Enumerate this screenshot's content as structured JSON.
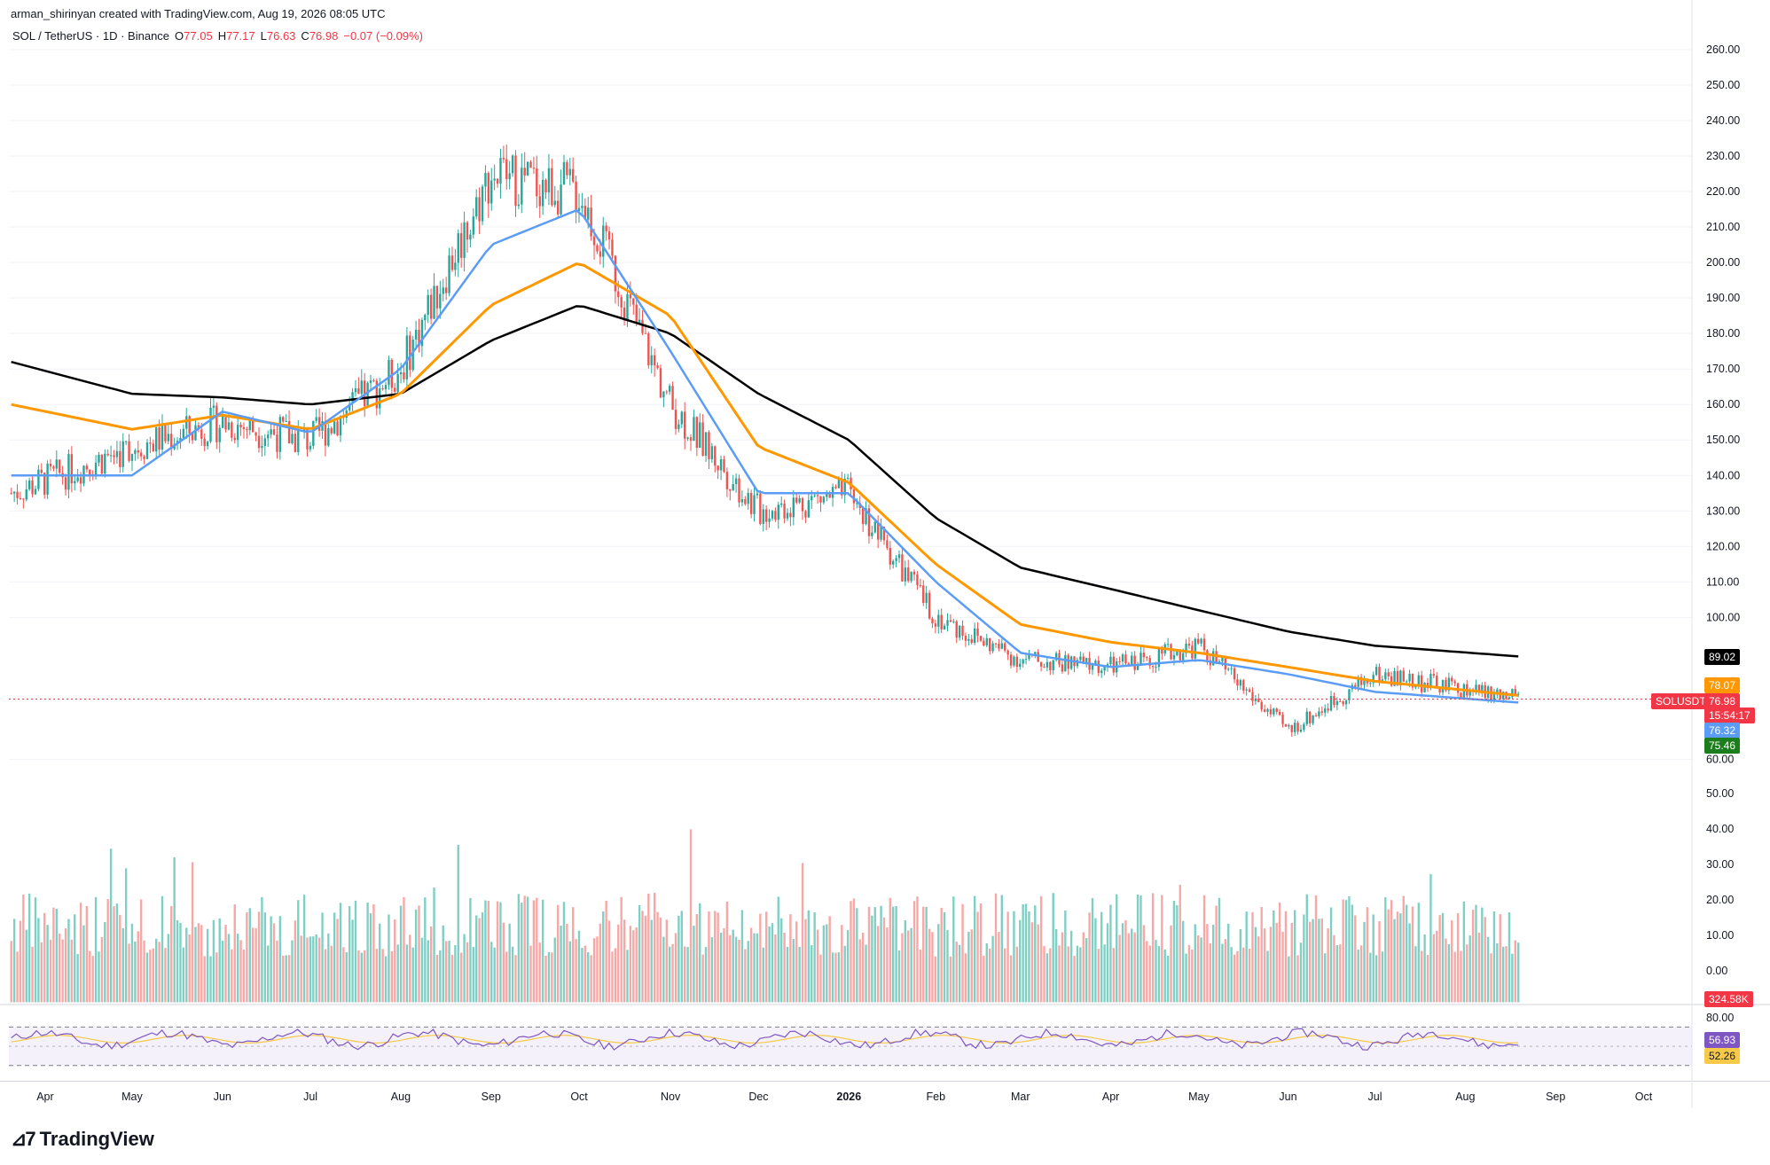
{
  "header": {
    "attribution": "arman_shirinyan created with TradingView.com, Aug 19, 2026 08:05 UTC"
  },
  "symbol": {
    "pair": "SOL / TetherUS · 1D · Binance",
    "open_label": "O",
    "open": "77.05",
    "high_label": "H",
    "high": "77.17",
    "low_label": "L",
    "low": "76.63",
    "close_label": "C",
    "close": "76.98",
    "change": "−0.07 (−0.09%)"
  },
  "price_axis": [
    "260.00",
    "250.00",
    "240.00",
    "230.00",
    "220.00",
    "210.00",
    "200.00",
    "190.00",
    "180.00",
    "170.00",
    "160.00",
    "150.00",
    "140.00",
    "130.00",
    "120.00",
    "110.00",
    "100.00",
    "60.00"
  ],
  "volume_axis": [
    "50.00",
    "40.00",
    "30.00",
    "20.00",
    "10.00",
    "0.00"
  ],
  "rsi_axis": [
    "80.00"
  ],
  "time_axis": [
    "Apr",
    "May",
    "Jun",
    "Jul",
    "Aug",
    "Sep",
    "Oct",
    "Nov",
    "Dec",
    "2026",
    "Feb",
    "Mar",
    "Apr",
    "May",
    "Jun",
    "Jul",
    "Aug",
    "Sep",
    "Oct"
  ],
  "badges": {
    "ma200": "89.02",
    "ma100": "78.07",
    "ticker": "SOLUSDT",
    "price": "76.98",
    "countdown": "15:54:17",
    "ma50": "76.32",
    "ma20": "75.46",
    "volume": "324.58K",
    "rsi": "56.93",
    "rsi_ma": "52.26"
  },
  "colors": {
    "up": "#26a69a",
    "down": "#ef5350",
    "ma20": "#4caf50",
    "ma50": "#5b9cf6",
    "ma100": "#ff9800",
    "ma200": "#000000",
    "rsi": "#7e57c2",
    "rsi_ma": "#f7c948"
  },
  "brand": "TradingView",
  "chart_data": {
    "type": "line",
    "x": [
      "Apr",
      "May",
      "Jun",
      "Jul",
      "Aug",
      "Sep",
      "Oct",
      "Nov",
      "Dec",
      "2026",
      "Feb",
      "Mar",
      "Apr",
      "May",
      "Jun",
      "Jul",
      "Aug"
    ],
    "series": [
      {
        "name": "SOL/USDT close",
        "values": [
          135,
          148,
          155,
          150,
          170,
          225,
          220,
          160,
          130,
          135,
          100,
          88,
          86,
          92,
          68,
          84,
          77
        ]
      },
      {
        "name": "MA200",
        "values": [
          172,
          163,
          162,
          160,
          163,
          178,
          188,
          180,
          163,
          150,
          128,
          114,
          108,
          102,
          96,
          92,
          89
        ]
      },
      {
        "name": "MA100",
        "values": [
          160,
          153,
          157,
          153,
          163,
          188,
          200,
          185,
          148,
          138,
          115,
          98,
          93,
          90,
          86,
          82,
          78
        ]
      },
      {
        "name": "MA50",
        "values": [
          140,
          140,
          158,
          152,
          170,
          205,
          215,
          175,
          135,
          135,
          110,
          90,
          86,
          88,
          84,
          79,
          76
        ]
      }
    ],
    "ylim": [
      55,
      265
    ],
    "volume_ylim": [
      0,
      60
    ],
    "rsi_levels": [
      30,
      50,
      70
    ]
  }
}
